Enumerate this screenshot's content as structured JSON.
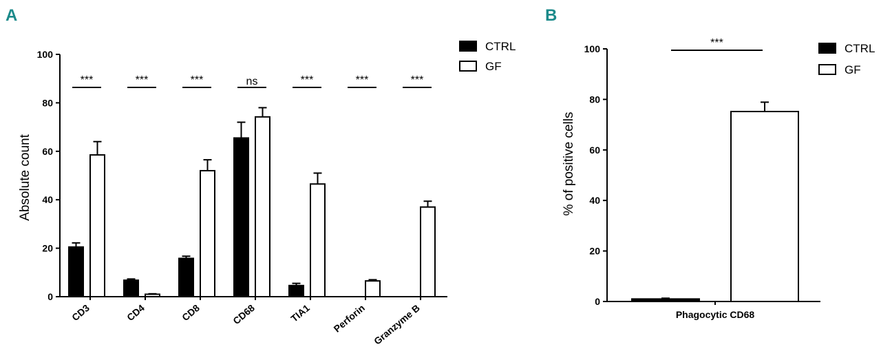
{
  "panel_a_label": "A",
  "panel_b_label": "B",
  "colors": {
    "panel_label": "#1b8a8a",
    "ctrl_fill": "#000000",
    "gf_fill": "#ffffff",
    "axis": "#000000"
  },
  "chart_data": [
    {
      "type": "bar",
      "panel": "A",
      "title": "",
      "ylabel": "Absolute count",
      "xlabel": "",
      "ylim": [
        0,
        100
      ],
      "yticks": [
        0,
        20,
        40,
        60,
        80,
        100
      ],
      "categories": [
        "CD3",
        "CD4",
        "CD8",
        "CD68",
        "TIA1",
        "Perforin",
        "Granzyme B"
      ],
      "series": [
        {
          "name": "CTRL",
          "values": [
            20.5,
            6.8,
            15.8,
            65.5,
            4.6,
            0,
            0
          ],
          "errors": [
            1.7,
            0.5,
            0.9,
            6.5,
            0.9,
            0,
            0
          ]
        },
        {
          "name": "GF",
          "values": [
            58.5,
            1.0,
            52.0,
            74.2,
            46.5,
            6.5,
            37.0
          ],
          "errors": [
            5.5,
            0.2,
            4.5,
            3.8,
            4.5,
            0.5,
            2.4
          ]
        }
      ],
      "significance": [
        "***",
        "***",
        "***",
        "ns",
        "***",
        "***",
        "***"
      ],
      "legend": [
        "CTRL",
        "GF"
      ],
      "legend_position": "top-right"
    },
    {
      "type": "bar",
      "panel": "B",
      "title": "",
      "ylabel": "% of positive cells",
      "xlabel": "",
      "ylim": [
        0,
        100
      ],
      "yticks": [
        0,
        20,
        40,
        60,
        80,
        100
      ],
      "categories": [
        "Phagocytic CD68"
      ],
      "series": [
        {
          "name": "CTRL",
          "values": [
            1.0
          ],
          "errors": [
            0.3
          ]
        },
        {
          "name": "GF",
          "values": [
            75.2
          ],
          "errors": [
            3.7
          ]
        }
      ],
      "significance": [
        "***"
      ],
      "legend": [
        "CTRL",
        "GF"
      ],
      "legend_position": "top-right"
    }
  ]
}
